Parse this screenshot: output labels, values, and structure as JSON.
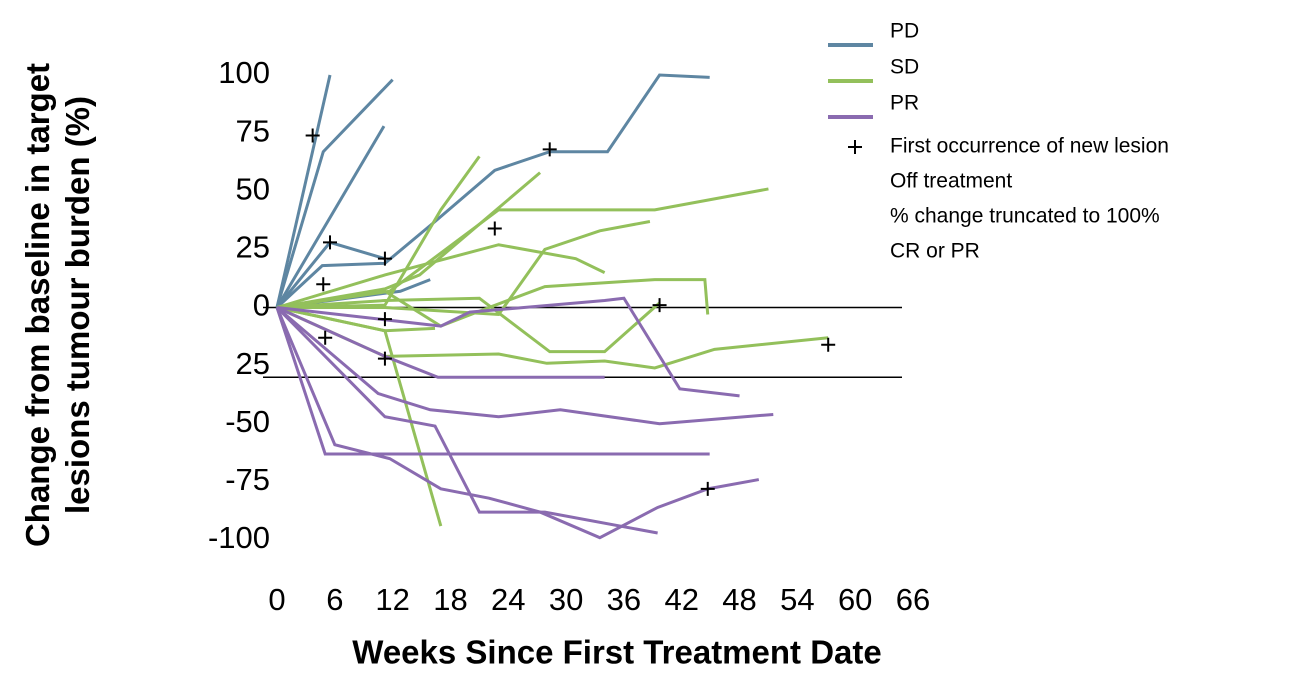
{
  "chart_data": {
    "type": "line",
    "ylabel": [
      "Change from baseline in target",
      "lesions tumour burden (%)"
    ],
    "xlabel": "Weeks Since First Treatment Date",
    "xlim": [
      0,
      66
    ],
    "xticks": [
      0,
      6,
      12,
      18,
      24,
      30,
      36,
      42,
      48,
      54,
      60,
      66
    ],
    "ylim": [
      -100,
      100
    ],
    "yticks": [
      100,
      75,
      50,
      25,
      0,
      {
        "value": -25,
        "label": "25"
      },
      -50,
      -75,
      -100
    ],
    "reference_lines": [
      0,
      -30
    ],
    "legend": "top-right",
    "series": [
      {
        "name": "PD",
        "color": "#5e86a2",
        "lines": [
          {
            "x": [
              0,
              5.5
            ],
            "values": [
              0,
              100
            ]
          },
          {
            "x": [
              0,
              4.8,
              12
            ],
            "values": [
              0,
              67,
              98
            ]
          },
          {
            "x": [
              0,
              11.1
            ],
            "values": [
              0,
              78
            ]
          },
          {
            "x": [
              0,
              4.7,
              11.2,
              16.4,
              22.6,
              28.3,
              34.3,
              39.7,
              44.9
            ],
            "values": [
              0,
              18,
              19,
              37,
              59,
              67,
              67,
              100,
              99
            ]
          },
          {
            "x": [
              0,
              5.5,
              11.2
            ],
            "values": [
              0,
              28,
              21
            ]
          },
          {
            "x": [
              0,
              12.8,
              15.9
            ],
            "values": [
              0,
              7,
              12
            ]
          }
        ]
      },
      {
        "name": "SD",
        "color": "#93c05b",
        "lines": [
          {
            "x": [
              0,
              11.2,
              17,
              21
            ],
            "values": [
              0,
              1,
              42,
              65
            ]
          },
          {
            "x": [
              0,
              11.7,
              23,
              33.5,
              39.2,
              51
            ],
            "values": [
              0,
              7,
              42,
              42,
              42,
              51
            ]
          },
          {
            "x": [
              0,
              11.2,
              23,
              31,
              34
            ],
            "values": [
              0,
              14,
              27,
              21,
              15
            ]
          },
          {
            "x": [
              0,
              11.2,
              14.8,
              27.3
            ],
            "values": [
              0,
              8,
              14,
              58
            ]
          },
          {
            "x": [
              0,
              11.2,
              17,
              22,
              27.8,
              39.2,
              44.4,
              44.7
            ],
            "values": [
              0,
              7,
              -8,
              0,
              9,
              12,
              12,
              -3
            ]
          },
          {
            "x": [
              0,
              11.2,
              23,
              27.8,
              33.5,
              38.7
            ],
            "values": [
              0,
              0,
              -3,
              25,
              33,
              37
            ]
          },
          {
            "x": [
              0,
              11.2,
              23,
              28,
              34,
              39.2,
              45.4,
              57.2
            ],
            "values": [
              0,
              -21,
              -20,
              -24,
              -23,
              -26,
              -18,
              -13
            ]
          },
          {
            "x": [
              0,
              11.2,
              21,
              28.3,
              34,
              39.7
            ],
            "values": [
              0,
              3,
              4,
              -19,
              -19,
              2
            ]
          },
          {
            "x": [
              0,
              11.2,
              17
            ],
            "values": [
              0,
              -10,
              -94
            ]
          },
          {
            "x": [
              0,
              11.2,
              16.4
            ],
            "values": [
              0,
              -10,
              -9
            ]
          }
        ]
      },
      {
        "name": "PR",
        "color": "#8a6bb0",
        "lines": [
          {
            "x": [
              0,
              5,
              44.9
            ],
            "values": [
              0,
              -63,
              -63
            ]
          },
          {
            "x": [
              0,
              6,
              11.7,
              17,
              22,
              27.3,
              33.5,
              39.5,
              44.7,
              50
            ],
            "values": [
              0,
              -59,
              -65,
              -78,
              -82,
              -88,
              -99,
              -86,
              -78,
              -74
            ]
          },
          {
            "x": [
              0,
              11.2,
              16.4,
              21,
              27.8,
              39.5
            ],
            "values": [
              0,
              -47,
              -51,
              -88,
              -88,
              -97
            ]
          },
          {
            "x": [
              0,
              10.5,
              15.9,
              23,
              29.4,
              39.7,
              51.5
            ],
            "values": [
              0,
              -37,
              -44,
              -47,
              -44,
              -50,
              -46
            ]
          },
          {
            "x": [
              0,
              11.2,
              16.7,
              34
            ],
            "values": [
              0,
              -21,
              -30,
              -30
            ]
          },
          {
            "x": [
              0,
              17,
              20,
              34,
              36,
              41.8,
              48
            ],
            "values": [
              0,
              -8,
              -2,
              3,
              4,
              -35,
              -38
            ]
          }
        ]
      }
    ],
    "new_lesion": {
      "name": "First occurrence of new lesion",
      "x": [
        3.7,
        5.5,
        4.8,
        11.2,
        5,
        11.2,
        11.2,
        28.3,
        22.6,
        39.7,
        57.2,
        44.7
      ],
      "y": [
        74,
        28,
        10,
        21,
        -13,
        -5,
        -22,
        68,
        34,
        1,
        -16,
        -78
      ]
    },
    "other_legend": [
      "Off treatment",
      "% change truncated to 100%",
      "CR or PR"
    ]
  }
}
